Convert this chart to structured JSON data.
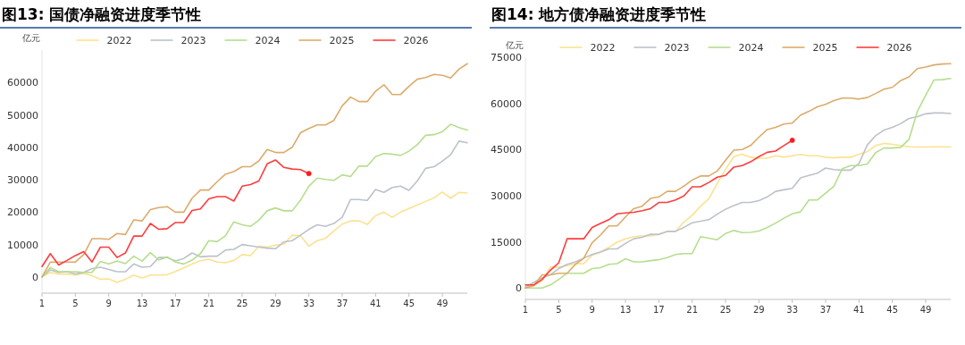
{
  "chart_data": [
    {
      "type": "line",
      "title": "图13: 国债净融资进度季节性",
      "ylabel": "亿元",
      "legend": "top",
      "xlim": [
        1,
        52
      ],
      "ylim": [
        -5000,
        70000
      ],
      "xticks": [
        1,
        5,
        9,
        13,
        17,
        21,
        25,
        29,
        33,
        37,
        41,
        45,
        49
      ],
      "yticks": [
        0,
        10000,
        20000,
        30000,
        40000,
        50000,
        60000
      ],
      "x": [
        1,
        2,
        3,
        4,
        5,
        6,
        7,
        8,
        9,
        10,
        11,
        12,
        13,
        14,
        15,
        16,
        17,
        18,
        19,
        20,
        21,
        22,
        23,
        24,
        25,
        26,
        27,
        28,
        29,
        30,
        31,
        32,
        33,
        34,
        35,
        36,
        37,
        38,
        39,
        40,
        41,
        42,
        43,
        44,
        45,
        46,
        47,
        48,
        49,
        50,
        51,
        52
      ],
      "series": [
        {
          "name": "2022",
          "color": "#fbe28f",
          "values": [
            0,
            1400,
            900,
            900,
            600,
            1100,
            400,
            -700,
            -600,
            -1700,
            -700,
            600,
            -300,
            600,
            600,
            700,
            1700,
            2800,
            4000,
            5000,
            5500,
            4600,
            4400,
            5100,
            6900,
            6600,
            9500,
            9200,
            9800,
            10100,
            12900,
            12700,
            9500,
            11200,
            11900,
            14200,
            16300,
            17300,
            17300,
            16200,
            18900,
            20000,
            18400,
            20000,
            21100,
            22200,
            23300,
            24400,
            26200,
            24300,
            26100,
            25900
          ]
        },
        {
          "name": "2023",
          "color": "#bcc1cb",
          "values": [
            0,
            2200,
            1400,
            1600,
            900,
            1400,
            2600,
            3000,
            2300,
            1600,
            1600,
            4000,
            3000,
            3200,
            6000,
            6000,
            4900,
            5700,
            7400,
            6200,
            6400,
            6400,
            8300,
            8500,
            10000,
            9600,
            9200,
            8900,
            8700,
            10800,
            11200,
            12900,
            14700,
            16100,
            15600,
            16500,
            18400,
            23900,
            23900,
            23600,
            27000,
            26100,
            27600,
            28000,
            26700,
            29600,
            33500,
            34000,
            35700,
            37700,
            41900,
            41400
          ]
        },
        {
          "name": "2024",
          "color": "#b6de8d",
          "values": [
            0,
            2900,
            1600,
            1600,
            1600,
            1400,
            1400,
            4800,
            4000,
            4900,
            4100,
            6400,
            4900,
            7500,
            5200,
            6200,
            4600,
            4000,
            5200,
            7200,
            11200,
            10900,
            12700,
            17000,
            16100,
            15600,
            17500,
            20400,
            21300,
            20400,
            20400,
            23700,
            28000,
            30500,
            30100,
            29800,
            31500,
            31000,
            34200,
            34200,
            37100,
            38100,
            37900,
            37500,
            38800,
            40800,
            43700,
            43900,
            44800,
            47100,
            46100,
            45300
          ]
        },
        {
          "name": "2025",
          "color": "#dcab6a",
          "values": [
            0,
            4600,
            4600,
            4600,
            4600,
            6900,
            11800,
            11800,
            11600,
            13400,
            13100,
            17600,
            17300,
            20800,
            21400,
            21700,
            20000,
            20000,
            24300,
            26800,
            26800,
            29400,
            31700,
            32500,
            34000,
            34000,
            35800,
            39300,
            38400,
            38400,
            40000,
            44500,
            45800,
            46900,
            46900,
            48300,
            52800,
            55500,
            54100,
            54100,
            57300,
            59300,
            56300,
            56300,
            58800,
            61000,
            61500,
            62500,
            62200,
            61400,
            64100,
            65800
          ]
        },
        {
          "name": "2026",
          "color": "#ff3c3c",
          "x": [
            1,
            2,
            3,
            4,
            5,
            6,
            7,
            8,
            9,
            10,
            11,
            12,
            13,
            14,
            15,
            16,
            17,
            18,
            19,
            20,
            21,
            22,
            23,
            24,
            25,
            26,
            27,
            28,
            29,
            30,
            31,
            32,
            33
          ],
          "values": [
            3200,
            7200,
            3700,
            5100,
            6600,
            7800,
            4600,
            9200,
            9200,
            6000,
            7400,
            12600,
            12600,
            16500,
            14700,
            14900,
            16800,
            16800,
            20500,
            21000,
            24100,
            24800,
            24800,
            23400,
            28000,
            28500,
            29600,
            34900,
            36100,
            33800,
            33300,
            33100,
            31900
          ]
        },
        {
          "type": "scatter",
          "color": "#ff1a1a",
          "x": [
            33
          ],
          "values": [
            31900
          ]
        }
      ]
    },
    {
      "type": "line",
      "title": "图14: 地方债净融资进度季节性",
      "ylabel": "亿元",
      "legend": "top",
      "xlim": [
        1,
        52
      ],
      "ylim": [
        -3700,
        75000
      ],
      "xticks": [
        1,
        5,
        9,
        13,
        17,
        21,
        25,
        29,
        33,
        37,
        41,
        45,
        49
      ],
      "yticks": [
        0,
        15000,
        30000,
        45000,
        60000,
        75000
      ],
      "x": [
        1,
        2,
        3,
        4,
        5,
        6,
        7,
        8,
        9,
        10,
        11,
        12,
        13,
        14,
        15,
        16,
        17,
        18,
        19,
        20,
        21,
        22,
        23,
        24,
        25,
        26,
        27,
        28,
        29,
        30,
        31,
        32,
        33,
        34,
        35,
        36,
        37,
        38,
        39,
        40,
        41,
        42,
        43,
        44,
        45,
        46,
        47,
        48,
        49,
        50,
        51,
        52
      ],
      "series": [
        {
          "name": "2022",
          "color": "#fbe28f",
          "values": [
            0,
            800,
            2300,
            6800,
            6800,
            7300,
            7900,
            7900,
            10700,
            11700,
            13200,
            14900,
            16000,
            16700,
            16900,
            16900,
            17500,
            18400,
            18400,
            21400,
            23600,
            26600,
            29000,
            34000,
            38500,
            42700,
            43500,
            42500,
            42200,
            42200,
            43000,
            42500,
            43000,
            43400,
            43000,
            43000,
            42500,
            42300,
            42500,
            42500,
            43500,
            44300,
            46300,
            47000,
            46700,
            46300,
            45900,
            45800,
            45800,
            45900,
            45900,
            45800
          ]
        },
        {
          "name": "2023",
          "color": "#bcc1cb",
          "values": [
            300,
            1800,
            3300,
            4300,
            6300,
            7700,
            8500,
            9700,
            10900,
            11700,
            12700,
            12700,
            14500,
            16000,
            16500,
            17500,
            17400,
            18400,
            18400,
            19700,
            21200,
            21700,
            22200,
            24000,
            25600,
            26800,
            27800,
            27800,
            28400,
            29600,
            31400,
            31900,
            32400,
            35800,
            36600,
            37300,
            39000,
            38500,
            38300,
            38300,
            40500,
            46500,
            49500,
            51300,
            52200,
            53400,
            55100,
            55700,
            56600,
            56900,
            56900,
            56700
          ]
        },
        {
          "name": "2024",
          "color": "#b6de8d",
          "values": [
            0,
            0,
            0,
            1000,
            2800,
            4800,
            4800,
            4800,
            6300,
            6600,
            7700,
            7900,
            9500,
            8500,
            8500,
            8900,
            9200,
            9900,
            10900,
            11200,
            11200,
            16700,
            16200,
            15700,
            17700,
            18700,
            18000,
            18100,
            18500,
            19700,
            21100,
            22700,
            24100,
            24800,
            28600,
            28600,
            30800,
            33100,
            38800,
            39800,
            39800,
            40300,
            44000,
            45500,
            45500,
            45700,
            48300,
            57400,
            62600,
            67600,
            67700,
            68100
          ]
        },
        {
          "name": "2025",
          "color": "#dcab6a",
          "values": [
            0,
            800,
            4300,
            4300,
            4800,
            4800,
            7700,
            9700,
            14700,
            17200,
            20200,
            20200,
            23100,
            25800,
            26600,
            29100,
            29600,
            31400,
            31400,
            33100,
            35100,
            36400,
            36400,
            38000,
            41500,
            44800,
            45000,
            46300,
            49000,
            51500,
            52200,
            53300,
            53600,
            56200,
            57400,
            58900,
            59700,
            60900,
            61700,
            61700,
            61400,
            61900,
            63200,
            64600,
            65200,
            67400,
            68600,
            71300,
            71800,
            72500,
            72800,
            72900
          ]
        },
        {
          "name": "2026",
          "color": "#ff3c3c",
          "x": [
            1,
            2,
            3,
            4,
            5,
            6,
            7,
            8,
            9,
            10,
            11,
            12,
            13,
            14,
            15,
            16,
            17,
            18,
            19,
            20,
            21,
            22,
            23,
            24,
            25,
            26,
            27,
            28,
            29,
            30,
            31,
            32,
            33
          ],
          "values": [
            1000,
            1000,
            2800,
            5800,
            8200,
            16000,
            16000,
            16000,
            19700,
            21000,
            22200,
            24100,
            24400,
            24600,
            25100,
            25800,
            27800,
            27800,
            28600,
            29900,
            32900,
            32900,
            34300,
            36000,
            36600,
            39300,
            39800,
            41000,
            42700,
            44100,
            44500,
            46300,
            48000
          ]
        },
        {
          "type": "scatter",
          "color": "#ff1a1a",
          "x": [
            33
          ],
          "values": [
            48000
          ]
        }
      ]
    }
  ]
}
